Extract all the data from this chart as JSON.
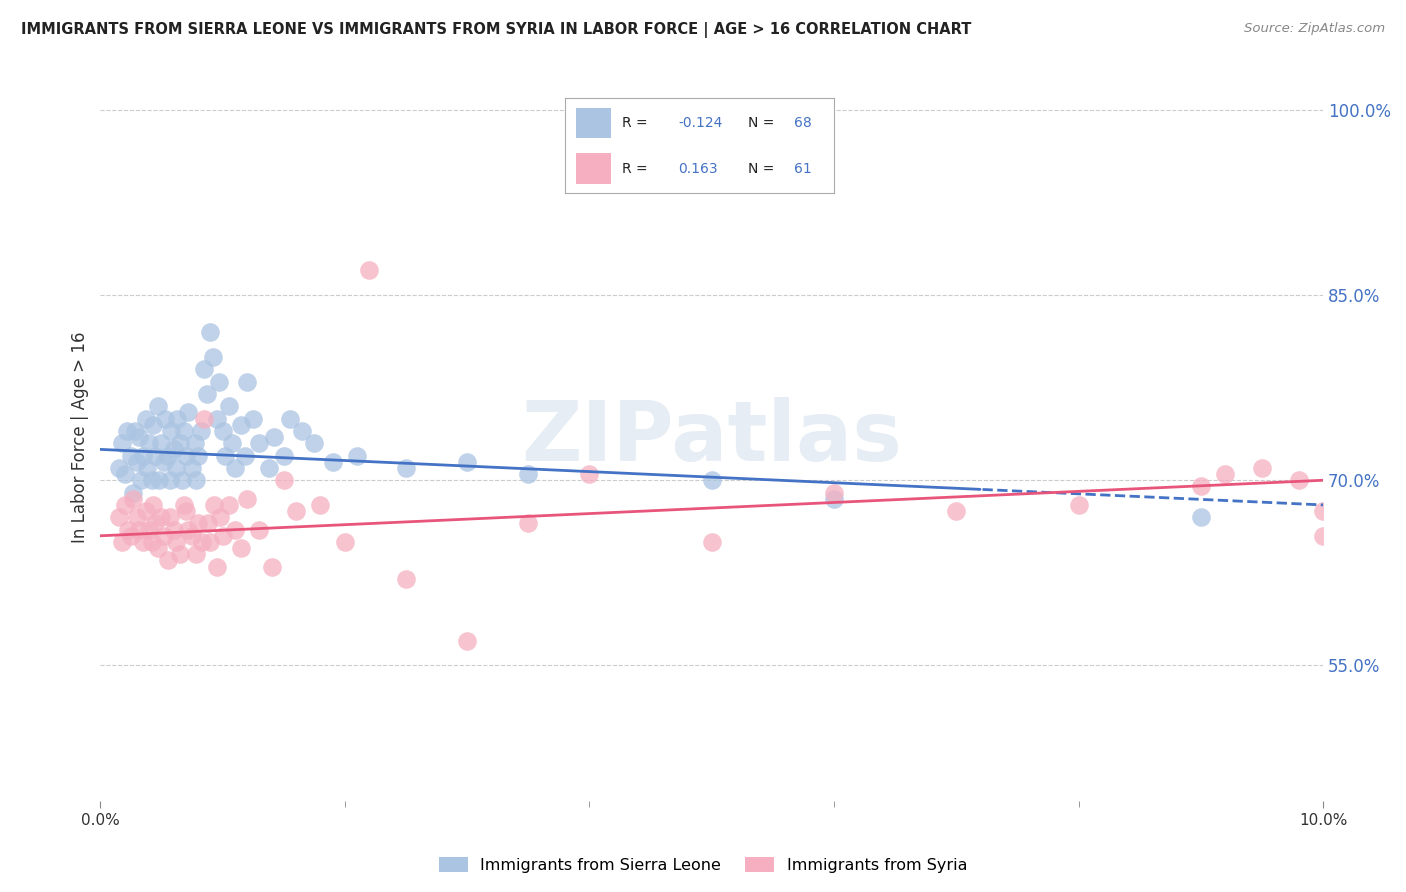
{
  "title": "IMMIGRANTS FROM SIERRA LEONE VS IMMIGRANTS FROM SYRIA IN LABOR FORCE | AGE > 16 CORRELATION CHART",
  "source": "Source: ZipAtlas.com",
  "ylabel": "In Labor Force | Age > 16",
  "xmin": 0.0,
  "xmax": 10.0,
  "ymin": 44.0,
  "ymax": 103.0,
  "yticks": [
    55.0,
    70.0,
    85.0,
    100.0
  ],
  "ytick_labels": [
    "55.0%",
    "70.0%",
    "85.0%",
    "100.0%"
  ],
  "sierra_leone_color": "#aac4e2",
  "syria_color": "#f5afc0",
  "sierra_leone_line_color": "#4472c4",
  "syria_line_color": "#e8557a",
  "background_color": "#ffffff",
  "grid_color": "#cccccc",
  "watermark": "ZIPatlas",
  "sierra_leone_x": [
    0.15,
    0.18,
    0.2,
    0.22,
    0.25,
    0.27,
    0.28,
    0.3,
    0.32,
    0.33,
    0.35,
    0.37,
    0.38,
    0.4,
    0.42,
    0.43,
    0.45,
    0.47,
    0.48,
    0.5,
    0.52,
    0.53,
    0.55,
    0.57,
    0.58,
    0.6,
    0.62,
    0.63,
    0.65,
    0.67,
    0.68,
    0.7,
    0.72,
    0.75,
    0.77,
    0.78,
    0.8,
    0.82,
    0.85,
    0.87,
    0.9,
    0.92,
    0.95,
    0.97,
    1.0,
    1.02,
    1.05,
    1.08,
    1.1,
    1.15,
    1.18,
    1.2,
    1.25,
    1.3,
    1.38,
    1.42,
    1.5,
    1.55,
    1.65,
    1.75,
    1.9,
    2.1,
    2.5,
    3.0,
    3.5,
    5.0,
    6.0,
    9.0
  ],
  "sierra_leone_y": [
    71.0,
    73.0,
    70.5,
    74.0,
    72.0,
    69.0,
    74.0,
    71.5,
    73.5,
    70.0,
    72.0,
    75.0,
    71.0,
    73.0,
    70.0,
    74.5,
    72.0,
    76.0,
    70.0,
    73.0,
    71.5,
    75.0,
    72.0,
    70.0,
    74.0,
    72.5,
    71.0,
    75.0,
    73.0,
    70.0,
    74.0,
    72.0,
    75.5,
    71.0,
    73.0,
    70.0,
    72.0,
    74.0,
    79.0,
    77.0,
    82.0,
    80.0,
    75.0,
    78.0,
    74.0,
    72.0,
    76.0,
    73.0,
    71.0,
    74.5,
    72.0,
    78.0,
    75.0,
    73.0,
    71.0,
    73.5,
    72.0,
    75.0,
    74.0,
    73.0,
    71.5,
    72.0,
    71.0,
    71.5,
    70.5,
    70.0,
    68.5,
    67.0
  ],
  "syria_x": [
    0.15,
    0.18,
    0.2,
    0.23,
    0.25,
    0.27,
    0.3,
    0.32,
    0.35,
    0.37,
    0.4,
    0.42,
    0.43,
    0.45,
    0.47,
    0.5,
    0.52,
    0.55,
    0.57,
    0.6,
    0.62,
    0.65,
    0.68,
    0.7,
    0.72,
    0.75,
    0.78,
    0.8,
    0.83,
    0.85,
    0.88,
    0.9,
    0.93,
    0.95,
    0.98,
    1.0,
    1.05,
    1.1,
    1.15,
    1.2,
    1.3,
    1.4,
    1.5,
    1.6,
    1.8,
    2.0,
    2.2,
    2.5,
    3.0,
    3.5,
    4.0,
    5.0,
    6.0,
    7.0,
    8.0,
    9.0,
    9.2,
    9.5,
    9.8,
    10.0,
    10.0
  ],
  "syria_y": [
    67.0,
    65.0,
    68.0,
    66.0,
    65.5,
    68.5,
    67.0,
    66.0,
    65.0,
    67.5,
    66.0,
    65.0,
    68.0,
    66.5,
    64.5,
    67.0,
    65.5,
    63.5,
    67.0,
    66.0,
    65.0,
    64.0,
    68.0,
    67.5,
    66.0,
    65.5,
    64.0,
    66.5,
    65.0,
    75.0,
    66.5,
    65.0,
    68.0,
    63.0,
    67.0,
    65.5,
    68.0,
    66.0,
    64.5,
    68.5,
    66.0,
    63.0,
    70.0,
    67.5,
    68.0,
    65.0,
    87.0,
    62.0,
    57.0,
    66.5,
    70.5,
    65.0,
    69.0,
    67.5,
    68.0,
    69.5,
    70.5,
    71.0,
    70.0,
    67.5,
    65.5
  ],
  "sl_line_x0": 0.0,
  "sl_line_x1": 10.0,
  "sl_line_y0": 72.5,
  "sl_line_y1": 68.0,
  "sy_line_x0": 0.0,
  "sy_line_x1": 10.0,
  "sy_line_y0": 65.5,
  "sy_line_y1": 70.0,
  "cross_x": 7.2
}
